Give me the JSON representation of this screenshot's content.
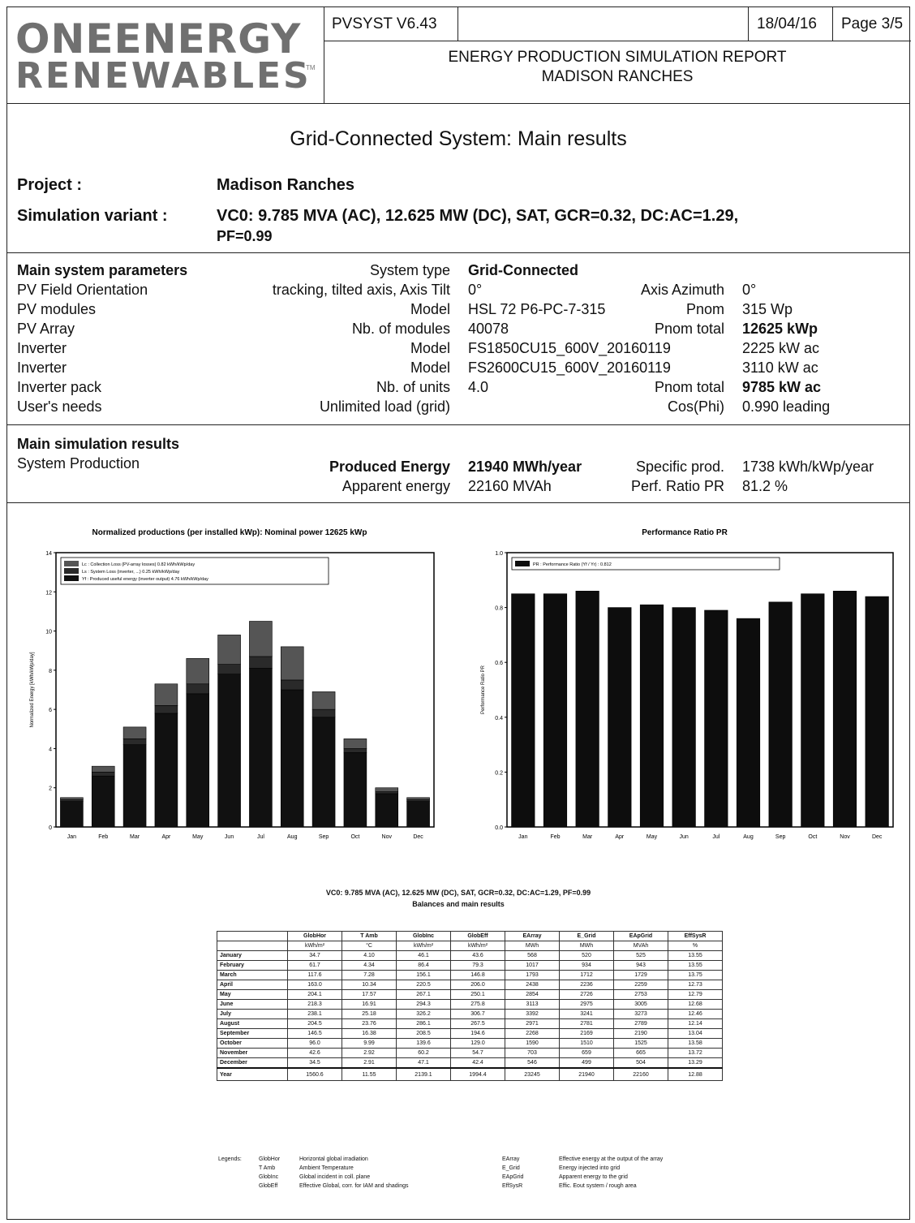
{
  "header": {
    "logo_line1": "ONEENERGY",
    "logo_line2": "RENEWABLES",
    "logo_tm": "TM",
    "software": "PVSYST V6.43",
    "date": "18/04/16",
    "page": "Page 3/5",
    "report_title": "ENERGY PRODUCTION SIMULATION REPORT",
    "report_subtitle": "MADISON RANCHES"
  },
  "main_title": "Grid-Connected System: Main results",
  "project": {
    "label": "Project :",
    "value": "Madison Ranches",
    "variant_label": "Simulation variant :",
    "variant_value": "VC0: 9.785 MVA (AC), 12.625 MW (DC), SAT, GCR=0.32, DC:AC=1.29,",
    "variant_value2": "PF=0.99"
  },
  "params": {
    "title": "Main system parameters",
    "system_type_label": "System type",
    "system_type": "Grid-Connected",
    "rows": [
      {
        "name": "PV Field Orientation",
        "desc": "tracking, tilted axis, Axis Tilt",
        "val": "0°",
        "k2": "Axis Azimuth",
        "v2": "0°"
      },
      {
        "name": "PV modules",
        "desc": "Model",
        "val": "HSL 72 P6-PC-7-315",
        "k2": "Pnom",
        "v2": "315 Wp"
      },
      {
        "name": "PV Array",
        "desc": "Nb. of modules",
        "val": "40078",
        "k2": "Pnom total",
        "v2": "12625 kWp"
      },
      {
        "name": "Inverter",
        "desc": "Model",
        "val": "FS1850CU15_600V_20160119",
        "k2": "",
        "v2": "2225 kW ac"
      },
      {
        "name": "Inverter",
        "desc": "Model",
        "val": "FS2600CU15_600V_20160119",
        "k2": "",
        "v2": "3110 kW ac"
      },
      {
        "name": "Inverter pack",
        "desc": "Nb. of units",
        "val": "4.0",
        "k2": "Pnom total",
        "v2": "9785 kW ac"
      },
      {
        "name": "User's needs",
        "desc": "Unlimited load (grid)",
        "val": "",
        "k2": "Cos(Phi)",
        "v2": "0.990 leading"
      }
    ]
  },
  "results": {
    "title": "Main simulation results",
    "sub": "System Production",
    "produced_label": "Produced Energy",
    "produced_value": "21940 MWh/year",
    "specific_label": "Specific prod.",
    "specific_value": "1738 kWh/kWp/year",
    "apparent_label": "Apparent energy",
    "apparent_value": "22160 MVAh",
    "pr_label": "Perf. Ratio PR",
    "pr_value": "81.2 %"
  },
  "chart_data": [
    {
      "type": "bar",
      "title": "Normalized productions (per installed kWp): Nominal power 12625 kWp",
      "ylabel": "Normalized Energy [kWh/kWp/day]",
      "ylim": [
        0,
        14
      ],
      "yticks": [
        "0",
        "2",
        "4",
        "6",
        "8",
        "10",
        "12",
        "14"
      ],
      "categories": [
        "Jan",
        "Feb",
        "Mar",
        "Apr",
        "May",
        "Jun",
        "Jul",
        "Aug",
        "Sep",
        "Oct",
        "Nov",
        "Dec"
      ],
      "series": [
        {
          "name": "Yf : Produced useful energy (inverter output) 4.76 kWh/kWp/day",
          "values": [
            1.3,
            2.6,
            4.2,
            5.8,
            6.8,
            7.8,
            8.1,
            7.0,
            5.6,
            3.8,
            1.7,
            1.3
          ]
        },
        {
          "name": "Ls : System Loss (inverter, ...) 0.25 kWh/kWp/day",
          "values": [
            0.1,
            0.2,
            0.3,
            0.4,
            0.5,
            0.5,
            0.6,
            0.5,
            0.4,
            0.2,
            0.1,
            0.1
          ]
        },
        {
          "name": "Lc : Collection Loss (PV-array losses) 0.82 kWh/kWp/day",
          "values": [
            0.1,
            0.3,
            0.6,
            1.1,
            1.3,
            1.5,
            1.8,
            1.7,
            0.9,
            0.5,
            0.2,
            0.1
          ]
        }
      ],
      "colors": [
        "#111111",
        "#2a2a2a",
        "#555555"
      ]
    },
    {
      "type": "bar",
      "title": "Performance Ratio PR",
      "ylabel": "Performance Ratio PR",
      "ylim": [
        0,
        1.0
      ],
      "yticks": [
        "0.0",
        "0.2",
        "0.4",
        "0.6",
        "0.8",
        "1.0"
      ],
      "categories": [
        "Jan",
        "Feb",
        "Mar",
        "Apr",
        "May",
        "Jun",
        "Jul",
        "Aug",
        "Sep",
        "Oct",
        "Nov",
        "Dec"
      ],
      "series": [
        {
          "name": "PR : Performance Ratio (Yf / Yr) : 0.812",
          "values": [
            0.85,
            0.85,
            0.86,
            0.8,
            0.81,
            0.8,
            0.79,
            0.76,
            0.82,
            0.85,
            0.86,
            0.84
          ]
        }
      ],
      "colors": [
        "#0d0d0d"
      ]
    }
  ],
  "table": {
    "title": "VC0: 9.785 MVA (AC), 12.625 MW (DC), SAT, GCR=0.32, DC:AC=1.29, PF=0.99",
    "subtitle": "Balances and main results",
    "headers": [
      "GlobHor",
      "T Amb",
      "GlobInc",
      "GlobEff",
      "EArray",
      "E_Grid",
      "EApGrid",
      "EffSysR"
    ],
    "units": [
      "kWh/m²",
      "°C",
      "kWh/m²",
      "kWh/m²",
      "MWh",
      "MWh",
      "MVAh",
      "%"
    ],
    "rows": [
      {
        "month": "January",
        "vals": [
          "34.7",
          "4.10",
          "46.1",
          "43.6",
          "568",
          "520",
          "525",
          "13.55"
        ]
      },
      {
        "month": "February",
        "vals": [
          "61.7",
          "4.34",
          "86.4",
          "79.3",
          "1017",
          "934",
          "943",
          "13.55"
        ]
      },
      {
        "month": "March",
        "vals": [
          "117.6",
          "7.28",
          "156.1",
          "146.8",
          "1793",
          "1712",
          "1729",
          "13.75"
        ]
      },
      {
        "month": "April",
        "vals": [
          "163.0",
          "10.34",
          "220.5",
          "206.0",
          "2438",
          "2236",
          "2259",
          "12.73"
        ]
      },
      {
        "month": "May",
        "vals": [
          "204.1",
          "17.57",
          "267.1",
          "250.1",
          "2854",
          "2726",
          "2753",
          "12.79"
        ]
      },
      {
        "month": "June",
        "vals": [
          "218.3",
          "16.91",
          "294.3",
          "275.8",
          "3113",
          "2975",
          "3005",
          "12.68"
        ]
      },
      {
        "month": "July",
        "vals": [
          "238.1",
          "25.18",
          "326.2",
          "306.7",
          "3392",
          "3241",
          "3273",
          "12.46"
        ]
      },
      {
        "month": "August",
        "vals": [
          "204.5",
          "23.76",
          "286.1",
          "267.5",
          "2971",
          "2781",
          "2789",
          "12.14"
        ]
      },
      {
        "month": "September",
        "vals": [
          "146.5",
          "16.38",
          "208.5",
          "194.6",
          "2268",
          "2169",
          "2190",
          "13.04"
        ]
      },
      {
        "month": "October",
        "vals": [
          "96.0",
          "9.99",
          "139.6",
          "129.0",
          "1590",
          "1510",
          "1525",
          "13.58"
        ]
      },
      {
        "month": "November",
        "vals": [
          "42.6",
          "2.92",
          "60.2",
          "54.7",
          "703",
          "659",
          "665",
          "13.72"
        ]
      },
      {
        "month": "December",
        "vals": [
          "34.5",
          "2.91",
          "47.1",
          "42.4",
          "546",
          "499",
          "504",
          "13.29"
        ]
      }
    ],
    "year": {
      "month": "Year",
      "vals": [
        "1560.6",
        "11.55",
        "2139.1",
        "1994.4",
        "23245",
        "21940",
        "22160",
        "12.88"
      ]
    }
  },
  "legend": {
    "title": "Legends:",
    "left": [
      {
        "k": "GlobHor",
        "v": "Horizontal global irradiation"
      },
      {
        "k": "T Amb",
        "v": "Ambient Temperature"
      },
      {
        "k": "GlobInc",
        "v": "Global incident in coll. plane"
      },
      {
        "k": "GlobEff",
        "v": "Effective Global, corr. for IAM and shadings"
      }
    ],
    "right": [
      {
        "k": "EArray",
        "v": "Effective energy at the output of the array"
      },
      {
        "k": "E_Grid",
        "v": "Energy injected into grid"
      },
      {
        "k": "EApGrid",
        "v": "Apparent energy to the grid"
      },
      {
        "k": "EffSysR",
        "v": "Effic. Eout system / rough area"
      }
    ]
  }
}
